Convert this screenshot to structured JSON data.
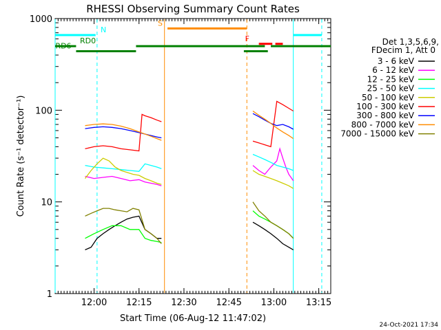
{
  "chart_data": {
    "type": "line",
    "title": "RHESSI Observing Summary Count Rates",
    "xlabel": "Start Time (06-Aug-12 11:47:02)",
    "ylabel": "Count Rate (s⁻¹ detector⁻¹)",
    "yscale": "log",
    "ylim": [
      1,
      1000
    ],
    "xlim_minutes": [
      0,
      92
    ],
    "x_unit": "minutes after 11:47:02",
    "xticks": [
      {
        "label": "12:00",
        "min": 13
      },
      {
        "label": "12:15",
        "min": 28
      },
      {
        "label": "12:30",
        "min": 43
      },
      {
        "label": "12:45",
        "min": 58
      },
      {
        "label": "13:00",
        "min": 73
      },
      {
        "label": "13:15",
        "min": 88
      }
    ],
    "yticks": [
      {
        "label": "1",
        "value": 1
      },
      {
        "label": "10",
        "value": 10
      },
      {
        "label": "100",
        "value": 100
      },
      {
        "label": "1000",
        "value": 1000
      }
    ],
    "legend_header": [
      "Det 1,3,5,6,9,",
      "FDecim 1, Att 0"
    ],
    "legend_position": "right",
    "date_stamp": "24-Oct-2021 17:34",
    "series": [
      {
        "name": "3 - 6 keV",
        "color": "#000000",
        "segments": [
          {
            "x": [
              10,
              12,
              14,
              16,
              18,
              20,
              22,
              24,
              26,
              28,
              30,
              32,
              34,
              35.5
            ],
            "y": [
              3,
              3.2,
              4,
              4.5,
              5,
              5.5,
              6,
              6.5,
              6.8,
              7,
              5,
              4.5,
              4,
              4
            ]
          },
          {
            "x": [
              66,
              68,
              70,
              72,
              74,
              76,
              78,
              79.5
            ],
            "y": [
              6,
              5.5,
              5,
              4.5,
              4,
              3.5,
              3.2,
              3
            ]
          }
        ]
      },
      {
        "name": "6 - 12 keV",
        "color": "#ff00ff",
        "segments": [
          {
            "x": [
              10,
              13,
              16,
              19,
              22,
              25,
              28,
              30,
              32,
              34,
              35.5
            ],
            "y": [
              19,
              18,
              18.5,
              19,
              18,
              17,
              17.5,
              16.5,
              16,
              15.5,
              15
            ]
          },
          {
            "x": [
              66,
              68,
              70,
              72,
              74,
              75,
              76,
              77,
              78,
              79.5
            ],
            "y": [
              25,
              22,
              20,
              24,
              28,
              38,
              30,
              24,
              20,
              17
            ]
          }
        ]
      },
      {
        "name": "12 - 25 keV",
        "color": "#00ff00",
        "segments": [
          {
            "x": [
              10,
              13,
              16,
              19,
              22,
              25,
              28,
              30,
              32,
              34,
              35.5
            ],
            "y": [
              4,
              4.5,
              5,
              5.5,
              5.5,
              5,
              5,
              4,
              3.8,
              3.7,
              3.6
            ]
          },
          {
            "x": [
              66,
              68,
              70,
              72,
              74,
              76,
              78,
              79.5
            ],
            "y": [
              8,
              7,
              6.5,
              6,
              5.5,
              5,
              4.5,
              4
            ]
          }
        ]
      },
      {
        "name": "25 - 50 keV",
        "color": "#00ffff",
        "segments": [
          {
            "x": [
              10,
              13,
              16,
              19,
              22,
              25,
              28,
              30,
              32,
              34,
              35.5
            ],
            "y": [
              25,
              24,
              23.5,
              23,
              22.5,
              22,
              21.5,
              26,
              25,
              24,
              23
            ]
          },
          {
            "x": [
              66,
              68,
              70,
              72,
              74,
              76,
              78,
              79.5
            ],
            "y": [
              33,
              31,
              29,
              27,
              25,
              24,
              23,
              22
            ]
          }
        ]
      },
      {
        "name": "50 - 100 keV",
        "color": "#cccc00",
        "segments": [
          {
            "x": [
              10,
              12,
              14,
              16,
              18,
              20,
              22,
              24,
              26,
              28,
              30,
              32,
              34,
              35.5
            ],
            "y": [
              18,
              22,
              26,
              30,
              28,
              24,
              22,
              21,
              20,
              19.5,
              18,
              17,
              16,
              15.5
            ]
          },
          {
            "x": [
              66,
              68,
              70,
              72,
              74,
              76,
              78,
              79.5
            ],
            "y": [
              22,
              20,
              19,
              18,
              17,
              16,
              15,
              14
            ]
          }
        ]
      },
      {
        "name": "100 - 300 keV",
        "color": "#ff0000",
        "segments": [
          {
            "x": [
              10,
              13,
              16,
              19,
              22,
              25,
              28,
              29,
              30,
              32,
              34,
              35.5
            ],
            "y": [
              38,
              40,
              41,
              40,
              38,
              37,
              36,
              90,
              87,
              83,
              78,
              75
            ]
          },
          {
            "x": [
              66,
              68,
              70,
              72,
              74,
              76,
              78,
              79.5
            ],
            "y": [
              46,
              44,
              42,
              40,
              125,
              115,
              105,
              98
            ]
          }
        ]
      },
      {
        "name": "300 - 800 keV",
        "color": "#0000ff",
        "segments": [
          {
            "x": [
              10,
              13,
              16,
              19,
              22,
              25,
              28,
              30,
              32,
              34,
              35.5
            ],
            "y": [
              63,
              65,
              66,
              65,
              63,
              60,
              57,
              55,
              53,
              51,
              50
            ]
          },
          {
            "x": [
              66,
              68,
              70,
              72,
              74,
              76,
              78,
              79.5
            ],
            "y": [
              92,
              85,
              78,
              72,
              68,
              70,
              66,
              62
            ]
          }
        ]
      },
      {
        "name": "800 - 7000 keV",
        "color": "#ff8c00",
        "segments": [
          {
            "x": [
              10,
              13,
              16,
              19,
              22,
              25,
              28,
              30,
              32,
              34,
              35.5
            ],
            "y": [
              68,
              70,
              71,
              70,
              67,
              63,
              58,
              55,
              52,
              49,
              47
            ]
          },
          {
            "x": [
              66,
              68,
              70,
              72,
              74,
              76,
              78,
              79.5
            ],
            "y": [
              98,
              88,
              80,
              72,
              64,
              58,
              53,
              49
            ]
          }
        ]
      },
      {
        "name": "7000 - 15000 keV",
        "color": "#808000",
        "segments": [
          {
            "x": [
              10,
              12,
              14,
              16,
              18,
              20,
              22,
              24,
              26,
              28,
              30,
              32,
              34,
              35.5
            ],
            "y": [
              7,
              7.5,
              8,
              8.5,
              8.5,
              8.2,
              8,
              7.8,
              8.5,
              8.2,
              5,
              4.5,
              4,
              3.5
            ]
          },
          {
            "x": [
              66,
              68,
              70,
              72,
              74,
              76,
              78,
              79.5
            ],
            "y": [
              10,
              8,
              7,
              6,
              5.5,
              5,
              4.5,
              4
            ]
          }
        ]
      }
    ],
    "annotations": [
      {
        "label": "N",
        "color": "#00ffff",
        "bars": [
          [
            0,
            13.5
          ],
          [
            79.5,
            89
          ]
        ],
        "level": 660
      },
      {
        "label": "S",
        "color": "#ff8c00",
        "bars": [
          [
            37.5,
            64
          ]
        ],
        "level": 780
      },
      {
        "label": "F",
        "color": "#ff0000",
        "bars": [
          [
            68,
            72.5
          ],
          [
            73.5,
            76
          ]
        ],
        "level": 530
      },
      {
        "label": "RD0",
        "color": "#008000",
        "bars": [
          [
            0,
            7
          ],
          [
            27,
            70
          ],
          [
            72,
            92
          ]
        ],
        "level": 500
      },
      {
        "label": "RD6",
        "color": "#008000",
        "bars": [
          [
            7,
            27
          ],
          [
            63,
            71
          ]
        ],
        "level": 440
      }
    ],
    "vlines": [
      {
        "min": 0,
        "color": "#00ffff",
        "dashed": false
      },
      {
        "min": 14,
        "color": "#00ffff",
        "dashed": true
      },
      {
        "min": 36.5,
        "color": "#ff8c00",
        "dashed": false
      },
      {
        "min": 64,
        "color": "#ff8c00",
        "dashed": true
      },
      {
        "min": 79.5,
        "color": "#00ffff",
        "dashed": false
      },
      {
        "min": 89,
        "color": "#00ffff",
        "dashed": true
      }
    ]
  }
}
